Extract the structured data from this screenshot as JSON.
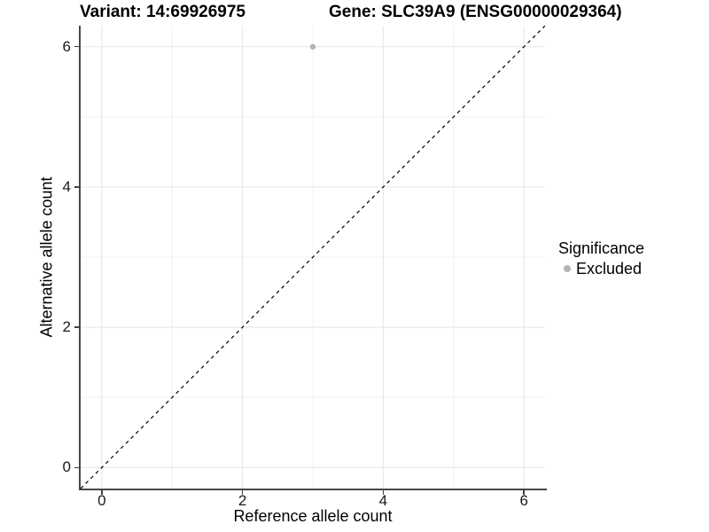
{
  "titles": {
    "left": "Variant: 14:69926975",
    "right": "Gene: SLC39A9 (ENSG00000029364)"
  },
  "chart_data": {
    "type": "scatter",
    "xlabel": "Reference allele count",
    "ylabel": "Alternative allele count",
    "xlim": [
      -0.3,
      6.3
    ],
    "ylim": [
      -0.3,
      6.3
    ],
    "x_ticks": [
      0,
      2,
      4,
      6
    ],
    "y_ticks": [
      0,
      2,
      4,
      6
    ],
    "grid_major": [
      0,
      2,
      4,
      6
    ],
    "grid_minor": [
      1,
      3,
      5
    ],
    "grid": true,
    "points": [
      {
        "x": 3,
        "y": 6,
        "series": "Excluded"
      }
    ],
    "reference_line": {
      "type": "identity",
      "style": "dashed"
    },
    "legend": {
      "title": "Significance",
      "position": "right",
      "entries": [
        {
          "label": "Excluded",
          "color": "#b4b4b4"
        }
      ]
    }
  },
  "colors": {
    "point": "#b4b4b4",
    "grid_major": "#e5e5e5",
    "grid_minor": "#f0f0f0",
    "axis_line": "#474747",
    "tick": "#404040",
    "diagonal": "#000000",
    "background": "#ffffff"
  }
}
